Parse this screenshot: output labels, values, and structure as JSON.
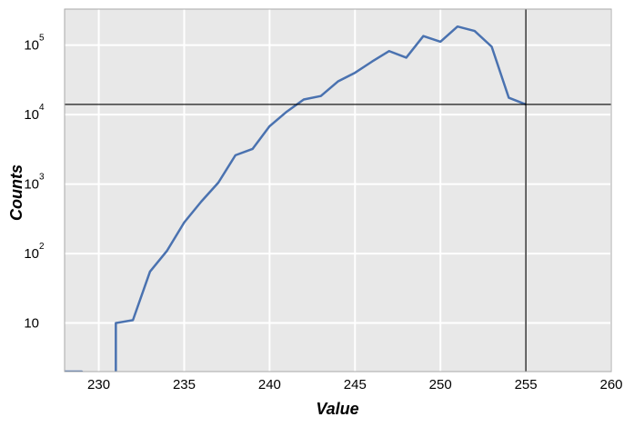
{
  "chart_data": {
    "type": "line",
    "xlabel": "Value",
    "ylabel": "Counts",
    "xlim": [
      228,
      260
    ],
    "ylim": [
      2,
      330000
    ],
    "yscale": "log",
    "grid": true,
    "x_ticks": [
      "230",
      "235",
      "240",
      "245",
      "250",
      "255",
      "260"
    ],
    "y_ticks": [
      {
        "base": "10",
        "exp": ""
      },
      {
        "base": "10",
        "exp": "2"
      },
      {
        "base": "10",
        "exp": "3"
      },
      {
        "base": "10",
        "exp": "4"
      },
      {
        "base": "10",
        "exp": "5"
      }
    ],
    "y_tick_values": [
      10,
      100,
      1000,
      10000,
      100000
    ],
    "series": [
      {
        "color": "#4a72b0",
        "points": [
          [
            228,
            2
          ],
          [
            229,
            2
          ],
          [
            231,
            1
          ],
          [
            231,
            10
          ],
          [
            232,
            11
          ],
          [
            233,
            55
          ],
          [
            234,
            110
          ],
          [
            235,
            280
          ],
          [
            236,
            560
          ],
          [
            237,
            1050
          ],
          [
            238,
            2600
          ],
          [
            239,
            3200
          ],
          [
            240,
            6800
          ],
          [
            241,
            11000
          ],
          [
            242,
            16500
          ],
          [
            243,
            18500
          ],
          [
            244,
            30000
          ],
          [
            245,
            40000
          ],
          [
            246,
            58000
          ],
          [
            247,
            82000
          ],
          [
            248,
            66000
          ],
          [
            249,
            135000
          ],
          [
            250,
            112000
          ],
          [
            251,
            185000
          ],
          [
            252,
            160000
          ],
          [
            253,
            95000
          ],
          [
            254,
            17500
          ],
          [
            255,
            14000
          ]
        ]
      }
    ],
    "crosshair": {
      "x": 255,
      "y": 14000,
      "color": "#000000"
    },
    "colors": {
      "background": "#e8e8e8",
      "grid": "#ffffff",
      "frame": "#a8a8a8"
    }
  }
}
